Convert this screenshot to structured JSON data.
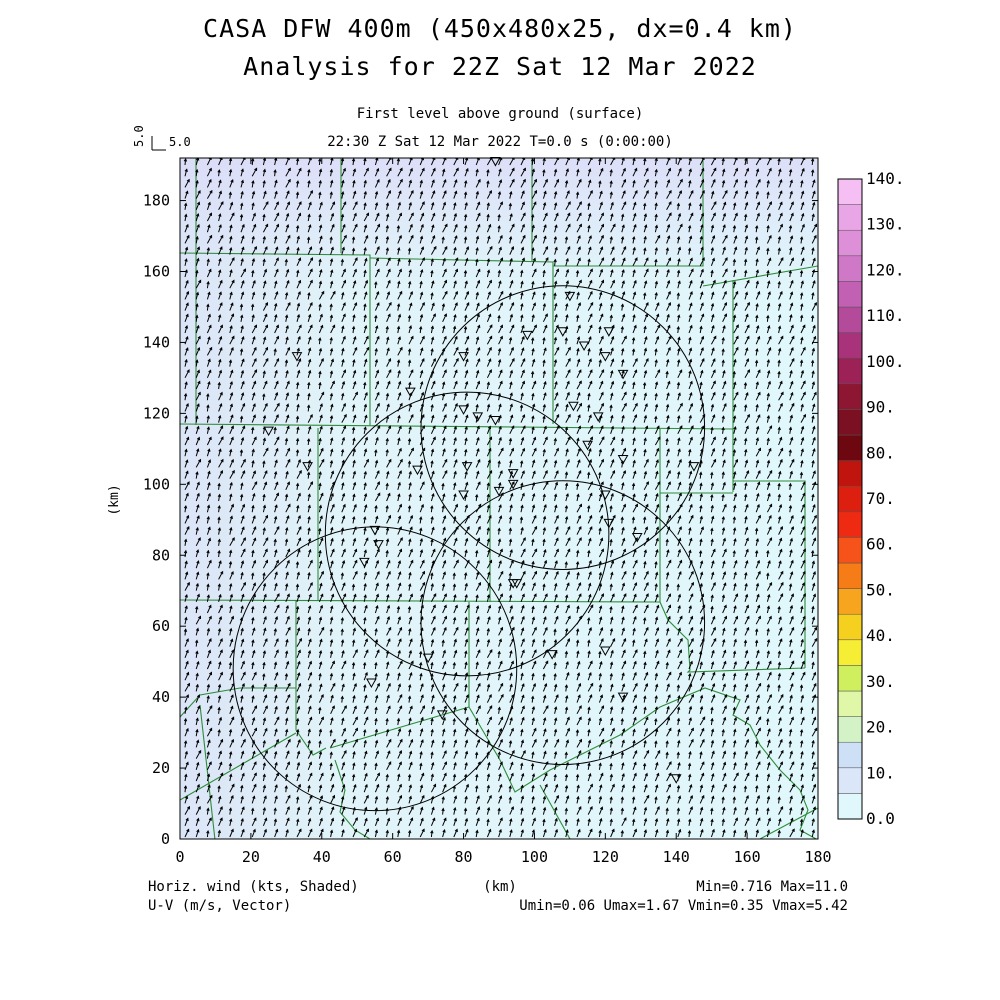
{
  "header": {
    "title_line1": "CASA DFW 400m (450x480x25, dx=0.4 km)",
    "title_line2": "Analysis for 22Z Sat 12 Mar 2022",
    "level": "First level above ground (surface)",
    "time": "22:30 Z Sat 12 Mar 2022    T=0.0 s (0:00:00)"
  },
  "reference_vector": {
    "u_label": "5.0",
    "v_label": "5.0"
  },
  "axes": {
    "x_ticks": [
      "0",
      "20",
      "40",
      "60",
      "80",
      "100",
      "120",
      "140",
      "160",
      "180"
    ],
    "y_ticks": [
      "0",
      "20",
      "40",
      "60",
      "80",
      "100",
      "120",
      "140",
      "160",
      "180"
    ],
    "y_label": "(km)",
    "x_label": "(km)",
    "x_range_km": [
      0,
      180
    ],
    "y_range_km": [
      0,
      192
    ]
  },
  "colorbar": {
    "labels": [
      "0.0",
      "10.",
      "20.",
      "30.",
      "40.",
      "50.",
      "60.",
      "70.",
      "80.",
      "90.",
      "100.",
      "110.",
      "120.",
      "130.",
      "140."
    ],
    "colors": [
      "#e0f7fb",
      "#dbe6f8",
      "#cde0f5",
      "#d3f3c6",
      "#dff7a6",
      "#cfef5e",
      "#f5ee35",
      "#f6d01e",
      "#f7a41f",
      "#f57c17",
      "#f6531b",
      "#ee2a12",
      "#dd1f10",
      "#c0140e",
      "#6e0810",
      "#7a1021",
      "#8d1632",
      "#9b2156",
      "#a8337a",
      "#b44a9a",
      "#c261b3",
      "#cf78c7",
      "#dd8fd8",
      "#e9a6e6",
      "#f5bff4"
    ]
  },
  "radars": [
    {
      "cx_km": 55,
      "cy_km": 48,
      "r_km": 40
    },
    {
      "cx_km": 81,
      "cy_km": 86,
      "r_km": 40
    },
    {
      "cx_km": 108,
      "cy_km": 61,
      "r_km": 40
    },
    {
      "cx_km": 108,
      "cy_km": 116,
      "r_km": 40
    }
  ],
  "stations_km": [
    [
      89,
      191
    ],
    [
      110,
      153
    ],
    [
      108,
      143
    ],
    [
      121,
      143
    ],
    [
      114,
      139
    ],
    [
      120,
      136
    ],
    [
      125,
      131
    ],
    [
      98,
      142
    ],
    [
      80,
      136
    ],
    [
      33,
      136
    ],
    [
      65,
      126
    ],
    [
      80,
      121
    ],
    [
      84,
      119
    ],
    [
      89,
      118
    ],
    [
      111,
      122
    ],
    [
      118,
      119
    ],
    [
      25,
      115
    ],
    [
      36,
      105
    ],
    [
      67,
      104
    ],
    [
      81,
      105
    ],
    [
      94,
      103
    ],
    [
      115,
      111
    ],
    [
      125,
      107
    ],
    [
      145,
      105
    ],
    [
      80,
      97
    ],
    [
      90,
      98
    ],
    [
      94,
      100
    ],
    [
      120,
      97
    ],
    [
      121,
      89
    ],
    [
      129,
      85
    ],
    [
      55,
      87
    ],
    [
      56,
      83
    ],
    [
      52,
      78
    ],
    [
      94,
      72
    ],
    [
      95,
      72
    ],
    [
      105,
      52
    ],
    [
      120,
      53
    ],
    [
      70,
      51
    ],
    [
      54,
      44
    ],
    [
      74,
      35
    ],
    [
      125,
      40
    ],
    [
      140,
      17
    ]
  ],
  "footer": {
    "left1": "Horiz. wind (kts, Shaded)",
    "left2": "U-V (m/s, Vector)",
    "right1": "Min=0.716 Max=11.0",
    "right2": "Umin=0.06 Umax=1.67 Vmin=0.35 Vmax=5.42"
  }
}
